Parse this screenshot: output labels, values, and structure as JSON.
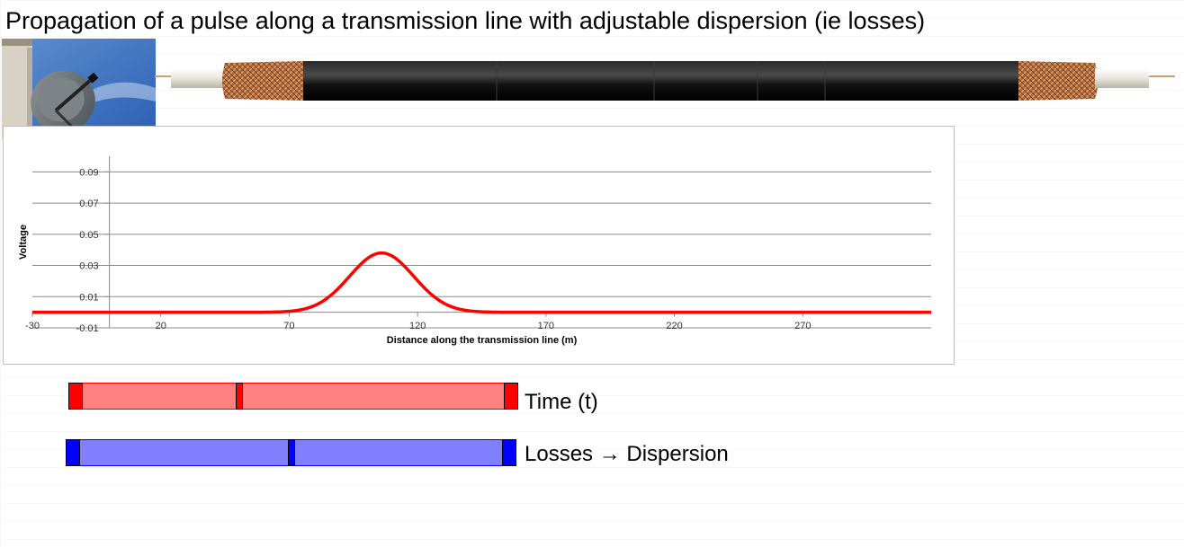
{
  "title": "Propagation of a pulse along a transmission line with adjustable dispersion (ie losses)",
  "images": {
    "dish": "satellite-dish-photo",
    "cable": "coaxial-cable-photo"
  },
  "chart_data": {
    "type": "line",
    "title": "",
    "xlabel": "Distance along the transmission line (m)",
    "ylabel": "Voltage",
    "xlim": [
      -30,
      320
    ],
    "ylim": [
      -0.01,
      0.1
    ],
    "x_ticks": [
      -30,
      20,
      70,
      120,
      170,
      220,
      270
    ],
    "y_ticks": [
      -0.01,
      0.01,
      0.03,
      0.05,
      0.07,
      0.09
    ],
    "y_tick_labels": [
      "-0.01",
      "0.01",
      "0.03",
      "0.05",
      "0.07",
      "0.09"
    ],
    "grid": true,
    "series": [
      {
        "color": "#ff0000",
        "pulse_center": 106,
        "pulse_amplitude": 0.038,
        "pulse_sigma": 12.5,
        "x": [
          -30,
          0,
          30,
          60,
          75,
          80,
          85,
          90,
          95,
          100,
          103,
          106,
          109,
          112,
          117,
          122,
          127,
          132,
          137,
          145,
          160,
          200,
          250,
          300,
          320
        ],
        "y": [
          0,
          0,
          0,
          0,
          0.0005,
          0.0014,
          0.0034,
          0.0083,
          0.0178,
          0.0271,
          0.0345,
          0.038,
          0.0345,
          0.0271,
          0.0178,
          0.0083,
          0.0034,
          0.0014,
          0.0004,
          0.0001,
          0,
          0,
          0,
          0,
          0
        ]
      }
    ]
  },
  "sliders": {
    "time": {
      "label": "Time (t)",
      "value": 0.37,
      "track_color": "#ff8080",
      "thumb_color": "#ff0000"
    },
    "losses": {
      "label": "Losses → Dispersion",
      "value": 0.5,
      "track_color": "#8080ff",
      "thumb_color": "#0000ff"
    }
  }
}
